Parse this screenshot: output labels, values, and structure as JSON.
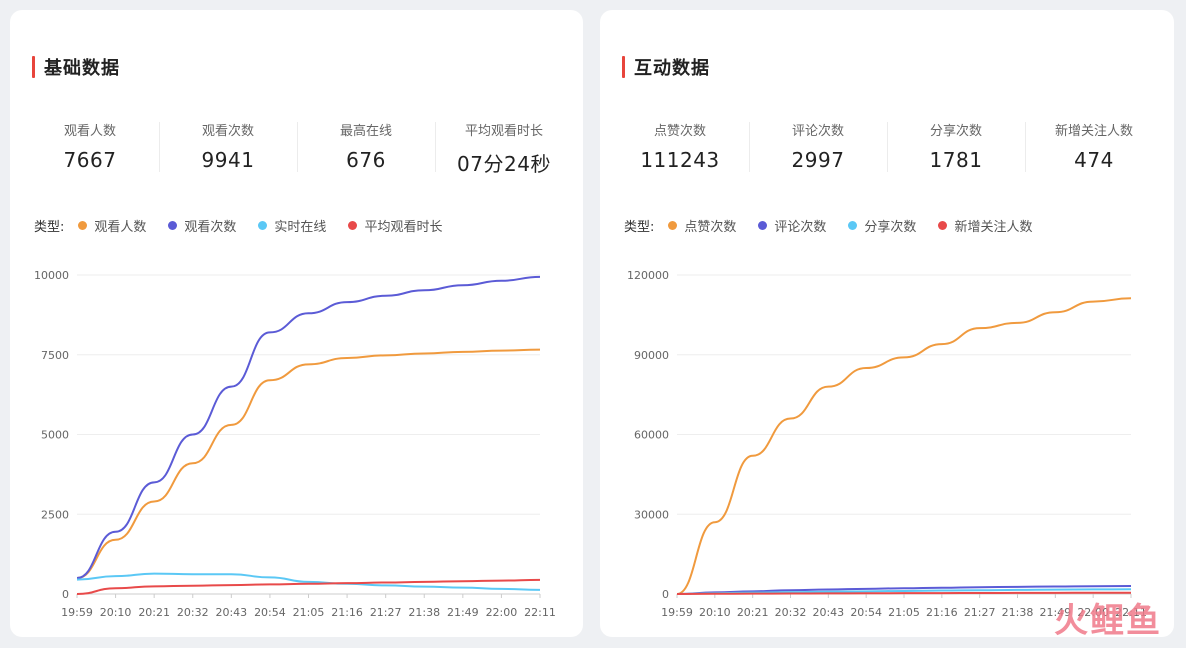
{
  "left_panel": {
    "title": "基础数据",
    "stats": [
      {
        "label": "观看人数",
        "value": "7667"
      },
      {
        "label": "观看次数",
        "value": "9941"
      },
      {
        "label": "最高在线",
        "value": "676"
      },
      {
        "label": "平均观看时长",
        "value": "07分24秒"
      }
    ],
    "legend_prefix": "类型:",
    "legend": [
      {
        "name": "观看人数",
        "color": "#f09a3e"
      },
      {
        "name": "观看次数",
        "color": "#5b5bd6"
      },
      {
        "name": "实时在线",
        "color": "#5bc8f5"
      },
      {
        "name": "平均观看时长",
        "color": "#e84a4a"
      }
    ]
  },
  "right_panel": {
    "title": "互动数据",
    "stats": [
      {
        "label": "点赞次数",
        "value": "111243"
      },
      {
        "label": "评论次数",
        "value": "2997"
      },
      {
        "label": "分享次数",
        "value": "1781"
      },
      {
        "label": "新增关注人数",
        "value": "474"
      }
    ],
    "legend_prefix": "类型:",
    "legend": [
      {
        "name": "点赞次数",
        "color": "#f09a3e"
      },
      {
        "name": "评论次数",
        "color": "#5b5bd6"
      },
      {
        "name": "分享次数",
        "color": "#5bc8f5"
      },
      {
        "name": "新增关注人数",
        "color": "#e84a4a"
      }
    ]
  },
  "watermark": "火鲤鱼",
  "chart_data": [
    {
      "type": "line",
      "x": [
        "19:59",
        "20:10",
        "20:21",
        "20:32",
        "20:43",
        "20:54",
        "21:05",
        "21:16",
        "21:27",
        "21:38",
        "21:49",
        "22:00",
        "22:11"
      ],
      "x_ticks": [
        "19:59",
        "20:10",
        "20:21",
        "20:32",
        "20:43",
        "20:54",
        "21:05",
        "21:16",
        "21:27",
        "21:38",
        "21:49",
        "22:00",
        "22:11"
      ],
      "ylim": [
        0,
        10000
      ],
      "y_ticks": [
        0,
        2500,
        5000,
        7500,
        10000
      ],
      "grid": true,
      "series": [
        {
          "name": "观看人数",
          "color": "#f09a3e",
          "values": [
            500,
            1700,
            2900,
            4100,
            5300,
            6700,
            7200,
            7400,
            7480,
            7540,
            7590,
            7630,
            7660
          ]
        },
        {
          "name": "观看次数",
          "color": "#5b5bd6",
          "values": [
            500,
            1950,
            3500,
            5000,
            6500,
            8200,
            8800,
            9150,
            9350,
            9520,
            9680,
            9820,
            9940
          ]
        },
        {
          "name": "实时在线",
          "color": "#5bc8f5",
          "values": [
            450,
            560,
            640,
            620,
            620,
            520,
            380,
            320,
            270,
            230,
            200,
            160,
            130
          ]
        },
        {
          "name": "平均观看时长",
          "color": "#e84a4a",
          "values": [
            0,
            180,
            240,
            260,
            280,
            300,
            320,
            340,
            360,
            380,
            400,
            420,
            444
          ]
        }
      ]
    },
    {
      "type": "line",
      "x": [
        "19:59",
        "20:10",
        "20:21",
        "20:32",
        "20:43",
        "20:54",
        "21:05",
        "21:16",
        "21:27",
        "21:38",
        "21:49",
        "22:00",
        "22:11"
      ],
      "x_ticks": [
        "19:59",
        "20:10",
        "20:21",
        "20:32",
        "20:43",
        "20:54",
        "21:05",
        "21:16",
        "21:27",
        "21:38",
        "21:49",
        "22:00",
        "22:11"
      ],
      "ylim": [
        0,
        120000
      ],
      "y_ticks": [
        0,
        30000,
        60000,
        90000,
        120000
      ],
      "grid": true,
      "series": [
        {
          "name": "点赞次数",
          "color": "#f09a3e",
          "values": [
            0,
            27000,
            52000,
            66000,
            78000,
            85000,
            89000,
            94000,
            100000,
            102000,
            106000,
            110000,
            111243
          ]
        },
        {
          "name": "评论次数",
          "color": "#5b5bd6",
          "values": [
            0,
            600,
            1000,
            1400,
            1700,
            1950,
            2150,
            2350,
            2550,
            2700,
            2820,
            2920,
            2997
          ]
        },
        {
          "name": "分享次数",
          "color": "#5bc8f5",
          "values": [
            0,
            300,
            500,
            700,
            850,
            1000,
            1150,
            1300,
            1420,
            1540,
            1640,
            1720,
            1781
          ]
        },
        {
          "name": "新增关注人数",
          "color": "#e84a4a",
          "values": [
            0,
            80,
            130,
            180,
            220,
            270,
            310,
            350,
            380,
            410,
            440,
            460,
            474
          ]
        }
      ]
    }
  ]
}
